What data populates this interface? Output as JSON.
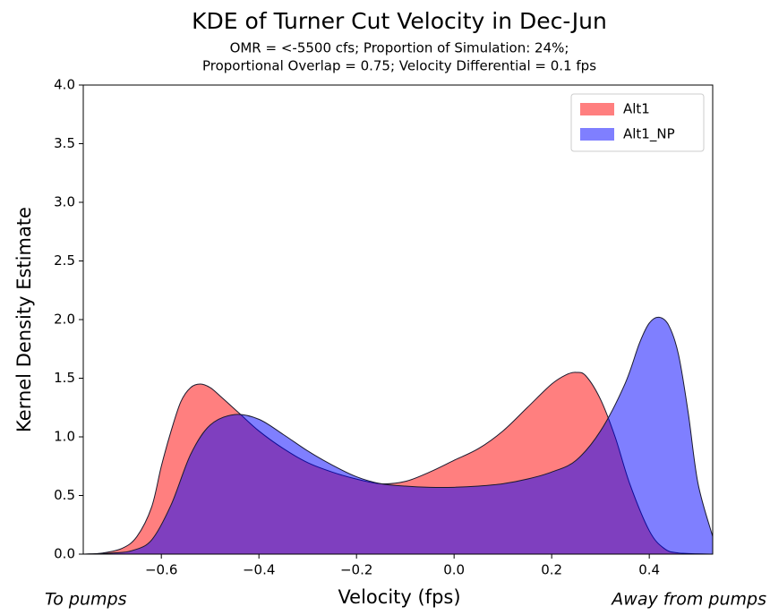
{
  "chart_data": {
    "type": "area",
    "title": "KDE of Turner Cut Velocity in Dec-Jun",
    "subtitle": [
      "OMR = <-5500 cfs; Proportion of Simulation: 24%;",
      "Proportional Overlap = 0.75; Velocity Differential = 0.1 fps"
    ],
    "xlabel": "Velocity (fps)",
    "ylabel": "Kernel Density Estimate",
    "annotations": [
      "To pumps",
      "Away from pumps"
    ],
    "xlim": [
      -0.76,
      0.53
    ],
    "ylim": [
      0,
      4
    ],
    "xticks": [
      {
        "value": -0.6,
        "label": "−0.6"
      },
      {
        "value": -0.4,
        "label": "−0.4"
      },
      {
        "value": -0.2,
        "label": "−0.2"
      },
      {
        "value": 0,
        "label": "0.0"
      },
      0.2,
      0.4
    ],
    "yticks": [
      {
        "value": 0,
        "label": "0.0"
      },
      0.5,
      {
        "value": 1,
        "label": "1.0"
      },
      1.5,
      {
        "value": 2,
        "label": "2.0"
      },
      2.5,
      {
        "value": 3,
        "label": "3.0"
      },
      3.5,
      {
        "value": 4,
        "label": "4.0"
      }
    ],
    "grid": false,
    "legend": "upper right",
    "series": [
      {
        "name": "Alt1",
        "color": "#ff0000",
        "x": [
          -0.76,
          -0.72,
          -0.68,
          -0.65,
          -0.62,
          -0.6,
          -0.58,
          -0.56,
          -0.54,
          -0.52,
          -0.5,
          -0.48,
          -0.44,
          -0.4,
          -0.35,
          -0.3,
          -0.25,
          -0.2,
          -0.15,
          -0.1,
          -0.05,
          0,
          0.05,
          0.1,
          0.15,
          0.2,
          0.23,
          0.25,
          0.27,
          0.3,
          0.33,
          0.36,
          0.4,
          0.43,
          0.46,
          0.53
        ],
        "values": [
          0,
          0.01,
          0.05,
          0.15,
          0.4,
          0.75,
          1.05,
          1.3,
          1.42,
          1.45,
          1.42,
          1.35,
          1.2,
          1.05,
          0.9,
          0.78,
          0.7,
          0.64,
          0.6,
          0.62,
          0.7,
          0.8,
          0.9,
          1.05,
          1.25,
          1.45,
          1.53,
          1.55,
          1.52,
          1.32,
          1.0,
          0.6,
          0.2,
          0.05,
          0.01,
          0
        ]
      },
      {
        "name": "Alt1_NP",
        "color": "#0000ff",
        "x": [
          -0.76,
          -0.7,
          -0.66,
          -0.62,
          -0.58,
          -0.54,
          -0.5,
          -0.45,
          -0.4,
          -0.35,
          -0.3,
          -0.25,
          -0.2,
          -0.15,
          -0.1,
          -0.05,
          0,
          0.05,
          0.1,
          0.15,
          0.2,
          0.25,
          0.3,
          0.35,
          0.38,
          0.4,
          0.42,
          0.44,
          0.46,
          0.48,
          0.5,
          0.53
        ],
        "values": [
          0,
          0.01,
          0.03,
          0.12,
          0.42,
          0.85,
          1.1,
          1.19,
          1.15,
          1.02,
          0.88,
          0.76,
          0.66,
          0.6,
          0.58,
          0.57,
          0.57,
          0.58,
          0.6,
          0.64,
          0.7,
          0.8,
          1.05,
          1.45,
          1.8,
          1.97,
          2.02,
          1.95,
          1.7,
          1.2,
          0.6,
          0.15
        ]
      }
    ]
  }
}
